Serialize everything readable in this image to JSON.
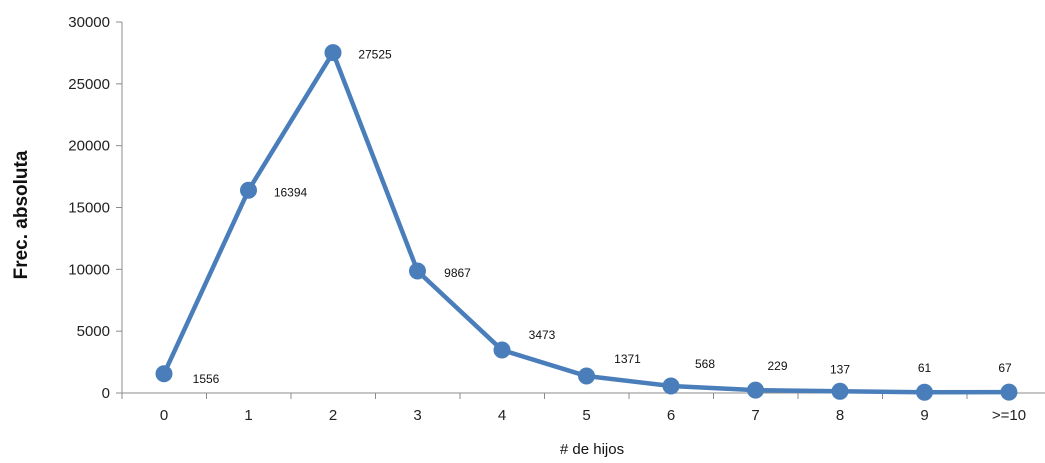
{
  "chart_data": {
    "type": "line",
    "title": "",
    "xlabel": "# de hijos",
    "ylabel": "Frec. absoluta",
    "categories": [
      "0",
      "1",
      "2",
      "3",
      "4",
      "5",
      "6",
      "7",
      "8",
      "9",
      ">=10"
    ],
    "series": [
      {
        "values": [
          1556,
          16394,
          27525,
          9867,
          3473,
          1371,
          568,
          229,
          137,
          61,
          67
        ],
        "color": "#4a7ebb"
      }
    ],
    "data_labels": [
      "1556",
      "16394",
      "27525",
      "9867",
      "3473",
      "1371",
      "568",
      "229",
      "137",
      "61",
      "67"
    ],
    "ylim": [
      0,
      30000
    ],
    "yticks": [
      "0",
      "5000",
      "10000",
      "15000",
      "20000",
      "25000",
      "30000"
    ],
    "grid": false,
    "markers": "circle"
  }
}
